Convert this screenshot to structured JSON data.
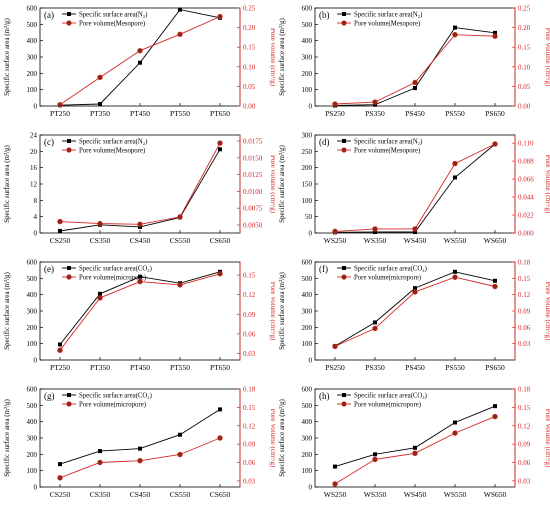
{
  "chart_data": [
    {
      "panel_label": "(a)",
      "type": "line",
      "categories": [
        "PT250",
        "PT350",
        "PT450",
        "PT550",
        "PT650"
      ],
      "series": [
        {
          "name": "Specific surface area(N₂)",
          "axis": "left",
          "values": [
            5,
            12,
            265,
            590,
            540
          ],
          "color": "#000000",
          "marker": "square"
        },
        {
          "name": "Pore volume(Mesopore)",
          "axis": "right",
          "values": [
            0.003,
            0.073,
            0.141,
            0.183,
            0.228
          ],
          "color": "#d62728",
          "marker": "circle"
        }
      ],
      "ylabel": "Specific surface area (m²/g)",
      "ylabel_right": "Pore volume (cm³/g)",
      "ylim": [
        0,
        600
      ],
      "yticks": [
        "0",
        "100",
        "200",
        "300",
        "400",
        "500",
        "600"
      ],
      "ylim_right": [
        0,
        0.25
      ],
      "yticks_right": [
        "0.00",
        "0.05",
        "0.10",
        "0.15",
        "0.20",
        "0.25"
      ]
    },
    {
      "panel_label": "(b)",
      "type": "line",
      "categories": [
        "PS250",
        "PS350",
        "PS450",
        "PS550",
        "PS650"
      ],
      "series": [
        {
          "name": "Specific surface area(N₂)",
          "axis": "left",
          "values": [
            3,
            8,
            110,
            480,
            448
          ],
          "color": "#000000",
          "marker": "square"
        },
        {
          "name": "Pore volume(Mesopore)",
          "axis": "right",
          "values": [
            0.005,
            0.01,
            0.06,
            0.182,
            0.178
          ],
          "color": "#d62728",
          "marker": "circle"
        }
      ],
      "ylabel": "Specific surface area (m²/g)",
      "ylabel_right": "Pore Volume (cm³/g)",
      "ylim": [
        0,
        600
      ],
      "yticks": [
        "0",
        "100",
        "200",
        "300",
        "400",
        "500",
        "600"
      ],
      "ylim_right": [
        0,
        0.25
      ],
      "yticks_right": [
        "0.00",
        "0.05",
        "0.10",
        "0.15",
        "0.20",
        "0.25"
      ]
    },
    {
      "panel_label": "(c)",
      "type": "line",
      "categories": [
        "CS250",
        "CS350",
        "CS450",
        "CS550",
        "CS650"
      ],
      "series": [
        {
          "name": "Specific surface area(N₂)",
          "axis": "left",
          "values": [
            0.5,
            2.0,
            1.5,
            3.8,
            20.5
          ],
          "color": "#000000",
          "marker": "square"
        },
        {
          "name": "Pore volume(Mesopore)",
          "axis": "right",
          "values": [
            0.0055,
            0.0052,
            0.0051,
            0.0062,
            0.0172
          ],
          "color": "#d62728",
          "marker": "circle"
        }
      ],
      "ylabel": "Specific surface area (m²/g)",
      "ylabel_right": "Pore volume (cm³/g)",
      "ylim": [
        0,
        24
      ],
      "yticks": [
        "0",
        "4",
        "8",
        "12",
        "16",
        "20",
        "24"
      ],
      "ylim_right": [
        0.0038,
        0.0184
      ],
      "yticks_right": [
        "0.0050",
        "0.0075",
        "0.0100",
        "0.0125",
        "0.0150",
        "0.0175"
      ]
    },
    {
      "panel_label": "(d)",
      "type": "line",
      "categories": [
        "WS250",
        "WS350",
        "WS450",
        "WS550",
        "WS650"
      ],
      "series": [
        {
          "name": "Specific surface area(N₂)",
          "axis": "left",
          "values": [
            2,
            3,
            3,
            170,
            272
          ],
          "color": "#000000",
          "marker": "square"
        },
        {
          "name": "Pore volume(Mesopore)",
          "axis": "right",
          "values": [
            0.002,
            0.005,
            0.005,
            0.085,
            0.109
          ],
          "color": "#d62728",
          "marker": "circle"
        }
      ],
      "ylabel": "Specific surface area (m²/g)",
      "ylabel_right": "Pore Volume (cm³/g)",
      "ylim": [
        0,
        300
      ],
      "yticks": [
        "0",
        "50",
        "100",
        "150",
        "200",
        "250",
        "300"
      ],
      "ylim_right": [
        0,
        0.12
      ],
      "yticks_right": [
        "0.000",
        "0.022",
        "0.044",
        "0.066",
        "0.088",
        "0.110"
      ]
    },
    {
      "panel_label": "(e)",
      "type": "line",
      "categories": [
        "PT250",
        "PT350",
        "PT450",
        "PT550",
        "PT650"
      ],
      "series": [
        {
          "name": "Specific surface area(CO₂)",
          "axis": "left",
          "values": [
            95,
            405,
            510,
            470,
            540
          ],
          "color": "#000000",
          "marker": "square"
        },
        {
          "name": "Pore volume(micropore)",
          "axis": "right",
          "values": [
            0.035,
            0.115,
            0.14,
            0.135,
            0.152
          ],
          "color": "#d62728",
          "marker": "circle"
        }
      ],
      "ylabel": "Specific surface area (m²/g)",
      "ylabel_right": "Pore Volume (cm³/g)",
      "ylim": [
        0,
        600
      ],
      "yticks": [
        "0",
        "100",
        "200",
        "300",
        "400",
        "500",
        "600"
      ],
      "ylim_right": [
        0.02,
        0.17
      ],
      "yticks_right": [
        "0.03",
        "0.06",
        "0.09",
        "0.12",
        "0.15"
      ]
    },
    {
      "panel_label": "(f)",
      "type": "line",
      "categories": [
        "PS250",
        "PS350",
        "PS450",
        "PS550",
        "PS650"
      ],
      "series": [
        {
          "name": "Specific surface area(CO₂)",
          "axis": "left",
          "values": [
            85,
            230,
            440,
            540,
            485
          ],
          "color": "#000000",
          "marker": "square"
        },
        {
          "name": "Pore volume(micropore)",
          "axis": "right",
          "values": [
            0.025,
            0.058,
            0.125,
            0.152,
            0.135
          ],
          "color": "#d62728",
          "marker": "circle"
        }
      ],
      "ylabel": "Specific surface area (m²/g)",
      "ylabel_right": "Pore Volume (cm³/g)",
      "ylim": [
        0,
        600
      ],
      "yticks": [
        "0",
        "100",
        "200",
        "300",
        "400",
        "500",
        "600"
      ],
      "ylim_right": [
        0,
        0.18
      ],
      "yticks_right": [
        "0.03",
        "0.06",
        "0.09",
        "0.12",
        "0.15",
        "0.18"
      ]
    },
    {
      "panel_label": "(g)",
      "type": "line",
      "categories": [
        "CS250",
        "CS350",
        "CS450",
        "CS550",
        "CS650"
      ],
      "series": [
        {
          "name": "Specific surface area(CO₂)",
          "axis": "left",
          "values": [
            140,
            220,
            235,
            320,
            475
          ],
          "color": "#000000",
          "marker": "square"
        },
        {
          "name": "Pore volume(micropore)",
          "axis": "right",
          "values": [
            0.035,
            0.06,
            0.063,
            0.073,
            0.1
          ],
          "color": "#d62728",
          "marker": "circle"
        }
      ],
      "ylabel": "Specific surface area (m²/g)",
      "ylabel_right": "Pore Volume (cm³/g)",
      "ylim": [
        0,
        600
      ],
      "yticks": [
        "0",
        "100",
        "200",
        "300",
        "400",
        "500",
        "600"
      ],
      "ylim_right": [
        0.02,
        0.18
      ],
      "yticks_right": [
        "0.03",
        "0.06",
        "0.09",
        "0.12",
        "0.15",
        "0.18"
      ]
    },
    {
      "panel_label": "(h)",
      "type": "line",
      "categories": [
        "WS250",
        "WS350",
        "WS450",
        "WS550",
        "WS650"
      ],
      "series": [
        {
          "name": "Specific surface area(CO₂)",
          "axis": "left",
          "values": [
            125,
            200,
            240,
            395,
            495
          ],
          "color": "#000000",
          "marker": "square"
        },
        {
          "name": "Pore volume(micropore)",
          "axis": "right",
          "values": [
            0.025,
            0.065,
            0.075,
            0.108,
            0.135
          ],
          "color": "#d62728",
          "marker": "circle"
        }
      ],
      "ylabel": "Specific surface area (m²/g)",
      "ylabel_right": "Pore Volume (cm³/g)",
      "ylim": [
        0,
        600
      ],
      "yticks": [
        "0",
        "100",
        "200",
        "300",
        "400",
        "500",
        "600"
      ],
      "ylim_right": [
        0.02,
        0.18
      ],
      "yticks_right": [
        "0.03",
        "0.06",
        "0.09",
        "0.12",
        "0.15",
        "0.18"
      ]
    }
  ]
}
